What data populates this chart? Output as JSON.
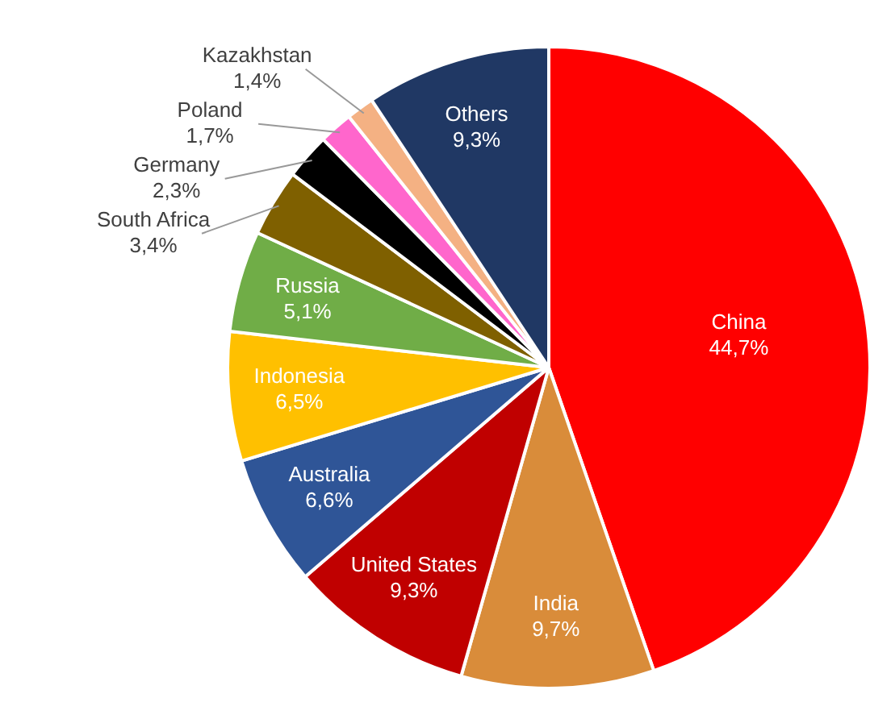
{
  "chart_data": {
    "type": "pie",
    "categories": [
      "China",
      "India",
      "United States",
      "Australia",
      "Indonesia",
      "Russia",
      "South Africa",
      "Germany",
      "Poland",
      "Kazakhstan",
      "Others"
    ],
    "values": [
      44.7,
      9.7,
      9.3,
      6.6,
      6.5,
      5.1,
      3.4,
      2.3,
      1.7,
      1.4,
      9.3
    ],
    "value_labels": [
      "44,7%",
      "9,7%",
      "9,3%",
      "6,6%",
      "6,5%",
      "5,1%",
      "3,4%",
      "2,3%",
      "1,7%",
      "1,4%",
      "9,3%"
    ],
    "colors": [
      "#ff0000",
      "#d98c3a",
      "#c00000",
      "#2f5597",
      "#ffc000",
      "#70ad47",
      "#7f6000",
      "#000000",
      "#ff66cc",
      "#f4b183",
      "#203864"
    ],
    "legend": false
  }
}
